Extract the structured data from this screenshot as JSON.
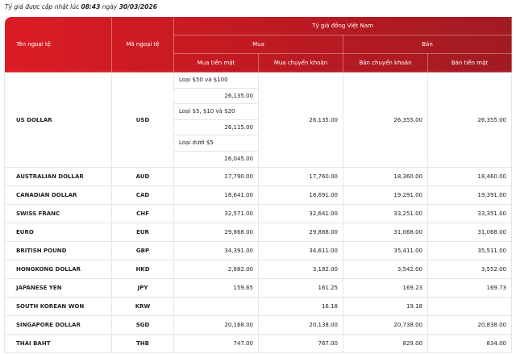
{
  "update_note": {
    "prefix": "Tỷ giá được cập nhật lúc",
    "time": "08:43",
    "mid": "ngày",
    "date": "30/03/2026"
  },
  "colors": {
    "header_start": "#dc1c24",
    "header_end": "#a11b22"
  },
  "headers": {
    "name": "Tên ngoại tệ",
    "code": "Mã ngoại tệ",
    "group": "Tỷ giá đồng Việt Nam",
    "buy": "Mua",
    "sell": "Bán",
    "buy_cash": "Mua tiền mặt",
    "buy_transfer": "Mua chuyển khoản",
    "sell_transfer": "Bán chuyển khoản",
    "sell_cash": "Bán tiền mặt"
  },
  "usd": {
    "name": "US DOLLAR",
    "code": "USD",
    "cash": [
      {
        "label": "Loại $50 và $100",
        "value": "26,135.00"
      },
      {
        "label": "Loại $5, $10 và $20",
        "value": "26,115.00"
      },
      {
        "label": "Loại dưới $5",
        "value": "26,045.00"
      }
    ],
    "buy_transfer": "26,135.00",
    "sell_transfer": "26,355.00",
    "sell_cash": "26,355.00"
  },
  "rows": [
    {
      "name": "AUSTRALIAN DOLLAR",
      "code": "AUD",
      "buy_cash": "17,790.00",
      "buy_transfer": "17,760.00",
      "sell_transfer": "18,360.00",
      "sell_cash": "18,460.00"
    },
    {
      "name": "CANADIAN DOLLAR",
      "code": "CAD",
      "buy_cash": "18,641.00",
      "buy_transfer": "18,691.00",
      "sell_transfer": "19,291.00",
      "sell_cash": "19,391.00"
    },
    {
      "name": "SWISS FRANC",
      "code": "CHF",
      "buy_cash": "32,571.00",
      "buy_transfer": "32,641.00",
      "sell_transfer": "33,251.00",
      "sell_cash": "33,351.00"
    },
    {
      "name": "EURO",
      "code": "EUR",
      "buy_cash": "29,868.00",
      "buy_transfer": "29,888.00",
      "sell_transfer": "31,068.00",
      "sell_cash": "31,068.00"
    },
    {
      "name": "BRITISH POUND",
      "code": "GBP",
      "buy_cash": "34,391.00",
      "buy_transfer": "34,611.00",
      "sell_transfer": "35,411.00",
      "sell_cash": "35,511.00"
    },
    {
      "name": "HONGKONG DOLLAR",
      "code": "HKD",
      "buy_cash": "2,882.00",
      "buy_transfer": "3,182.00",
      "sell_transfer": "3,542.00",
      "sell_cash": "3,552.00"
    },
    {
      "name": "JAPANESE YEN",
      "code": "JPY",
      "buy_cash": "159.65",
      "buy_transfer": "161.25",
      "sell_transfer": "169.23",
      "sell_cash": "169.73"
    },
    {
      "name": "SOUTH KOREAN WON",
      "code": "KRW",
      "buy_cash": "",
      "buy_transfer": "16.18",
      "sell_transfer": "19.18",
      "sell_cash": ""
    },
    {
      "name": "SINGAPORE DOLLAR",
      "code": "SGD",
      "buy_cash": "20,168.00",
      "buy_transfer": "20,138.00",
      "sell_transfer": "20,738.00",
      "sell_cash": "20,838.00"
    },
    {
      "name": "THAI BAHT",
      "code": "THB",
      "buy_cash": "747.00",
      "buy_transfer": "767.00",
      "sell_transfer": "829.00",
      "sell_cash": "834.00"
    }
  ]
}
